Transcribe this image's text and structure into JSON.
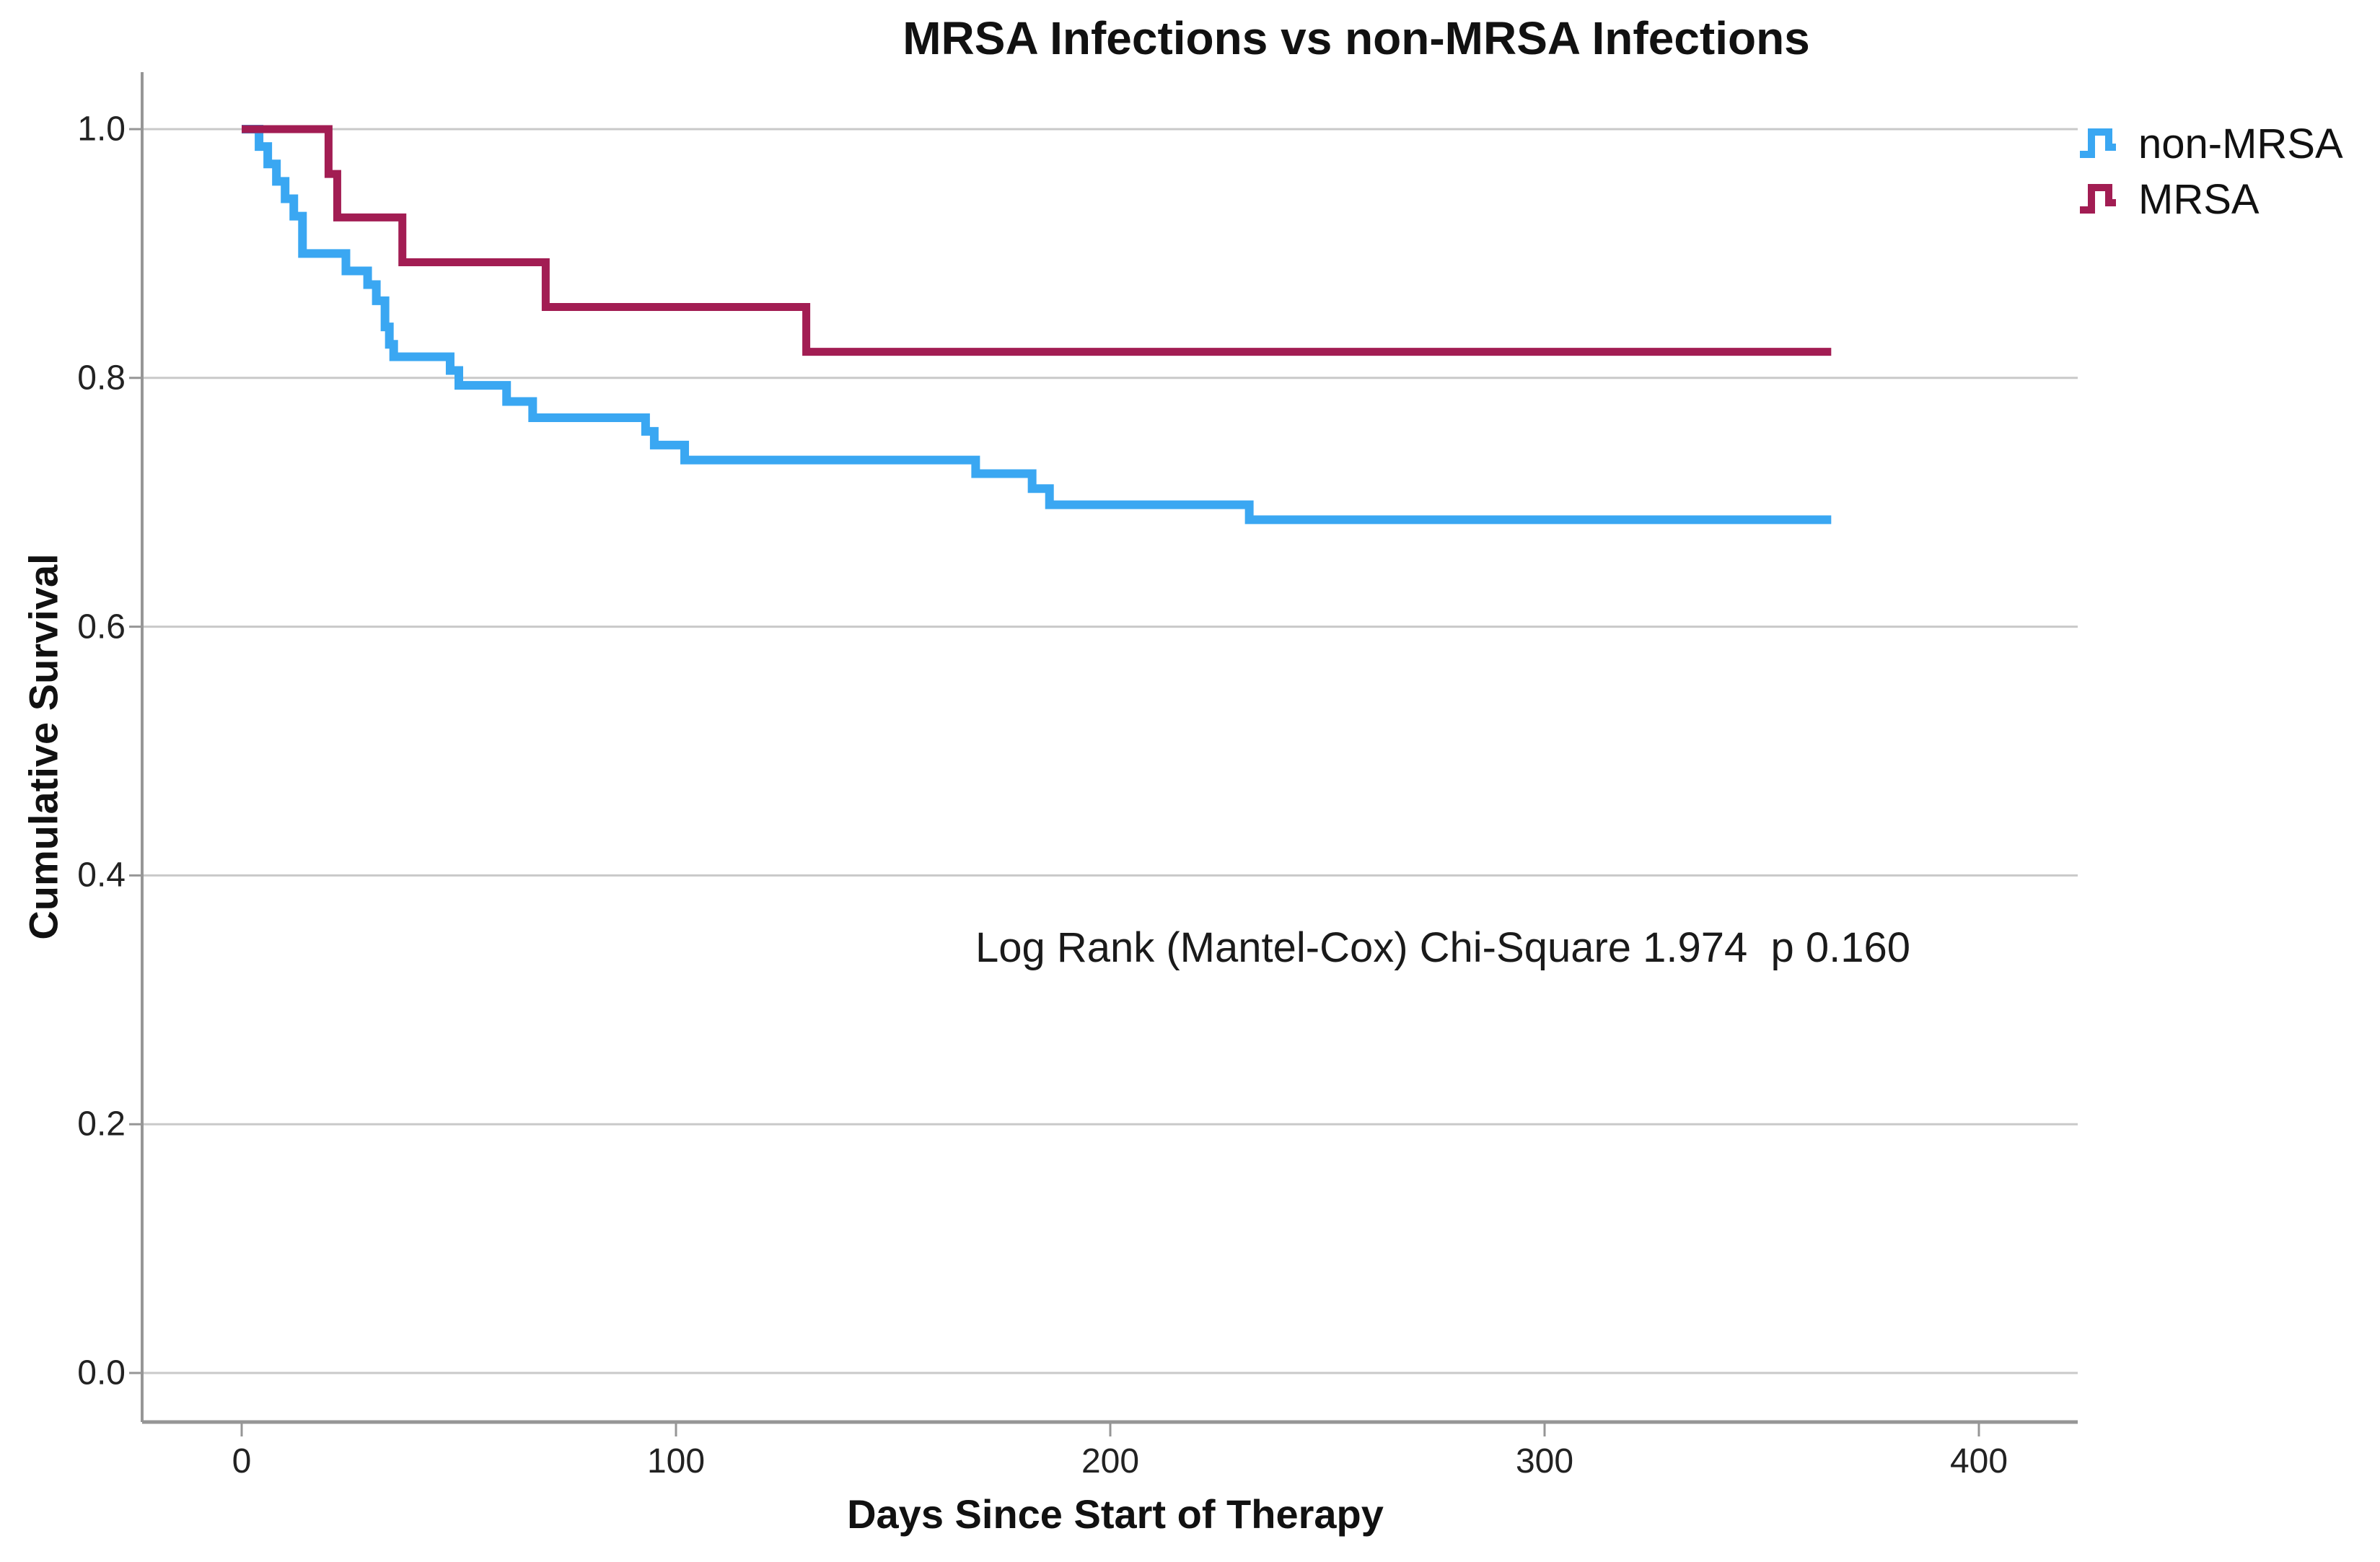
{
  "chart_data": {
    "type": "line",
    "subtype": "kaplan-meier-step-survival",
    "title": "MRSA Infections vs non-MRSA Infections",
    "xlabel": "Days Since Start of Therapy",
    "ylabel": "Cumulative Survival",
    "annotation": "Log Rank (Mantel-Cox) Chi-Square 1.974  p 0.160",
    "grid": "horizontal",
    "xlim": [
      -23,
      423
    ],
    "ylim": [
      -0.04,
      1.05
    ],
    "xticks": {
      "values": [
        0,
        100,
        200,
        300,
        400
      ],
      "labels": [
        "0",
        "100",
        "200",
        "300",
        "400"
      ]
    },
    "yticks": {
      "values": [
        1.0,
        0.8,
        0.6,
        0.4,
        0.2,
        0.0
      ],
      "labels": [
        "1.0",
        "0.8",
        "0.6",
        "0.4",
        "0.2",
        "0.0"
      ]
    },
    "legend": {
      "position": "top-right-outside",
      "entries": [
        "non-MRSA",
        "MRSA"
      ]
    },
    "series": [
      {
        "name": "non-MRSA",
        "color": "#3AA7F2",
        "start": [
          0,
          1.0
        ],
        "steps": [
          [
            4,
            0.986
          ],
          [
            6,
            0.972
          ],
          [
            8,
            0.958
          ],
          [
            10,
            0.944
          ],
          [
            12,
            0.93
          ],
          [
            14,
            0.9
          ],
          [
            24,
            0.886
          ],
          [
            29,
            0.875
          ],
          [
            31,
            0.862
          ],
          [
            33,
            0.841
          ],
          [
            34,
            0.827
          ],
          [
            35,
            0.817
          ],
          [
            48,
            0.806
          ],
          [
            50,
            0.794
          ],
          [
            61,
            0.781
          ],
          [
            67,
            0.768
          ],
          [
            93,
            0.757
          ],
          [
            95,
            0.746
          ],
          [
            102,
            0.734
          ],
          [
            169,
            0.723
          ],
          [
            182,
            0.711
          ],
          [
            186,
            0.698
          ],
          [
            232,
            0.686
          ]
        ],
        "end_day": 366,
        "final_survival": 0.686
      },
      {
        "name": "MRSA",
        "color": "#A21D53",
        "start": [
          0,
          1.0
        ],
        "steps": [
          [
            20,
            0.964
          ],
          [
            22,
            0.929
          ],
          [
            37,
            0.893
          ],
          [
            70,
            0.857
          ],
          [
            130,
            0.821
          ]
        ],
        "end_day": 366,
        "final_survival": 0.821
      }
    ],
    "colors": {
      "grid": "#c9c9c9",
      "axis": "#969696",
      "text": "#111111",
      "background": "#ffffff"
    }
  }
}
